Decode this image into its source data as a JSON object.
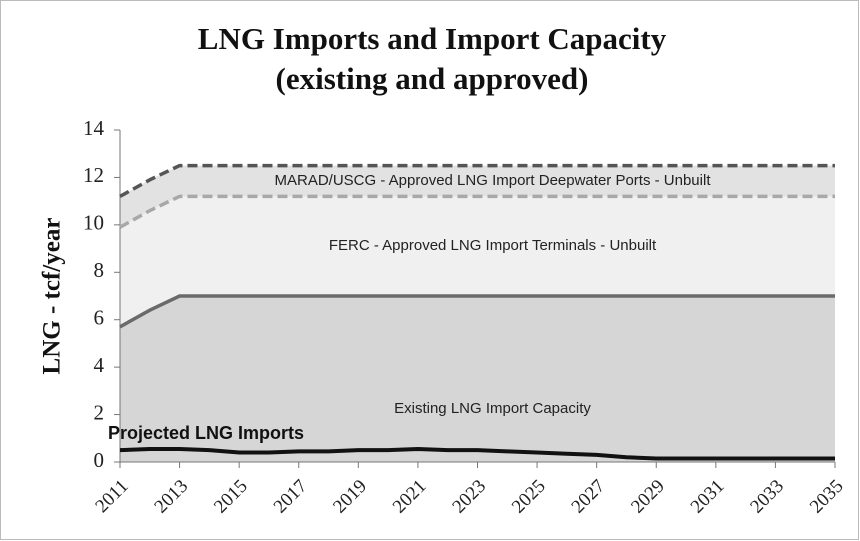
{
  "chart_data": {
    "type": "area",
    "stacked": true,
    "title": [
      "LNG Imports and Import Capacity",
      "(existing and approved)"
    ],
    "y_label": "LNG - tcf/year",
    "x": [
      2011,
      2012,
      2013,
      2014,
      2015,
      2016,
      2017,
      2018,
      2019,
      2020,
      2021,
      2022,
      2023,
      2024,
      2025,
      2026,
      2027,
      2028,
      2029,
      2030,
      2031,
      2032,
      2033,
      2034,
      2035
    ],
    "xlim": [
      2011,
      2035
    ],
    "xticks": [
      2011,
      2013,
      2015,
      2017,
      2019,
      2021,
      2023,
      2025,
      2027,
      2029,
      2031,
      2033,
      2035
    ],
    "ylim": [
      0,
      14
    ],
    "yticks": [
      0,
      2,
      4,
      6,
      8,
      10,
      12,
      14
    ],
    "series": [
      {
        "name": "Existing LNG Import Capacity",
        "color": "#d6d6d6",
        "line_color": "#6a6a6a",
        "dash": false,
        "values": [
          5.7,
          6.4,
          7.0,
          7.0,
          7.0,
          7.0,
          7.0,
          7.0,
          7.0,
          7.0,
          7.0,
          7.0,
          7.0,
          7.0,
          7.0,
          7.0,
          7.0,
          7.0,
          7.0,
          7.0,
          7.0,
          7.0,
          7.0,
          7.0,
          7.0
        ]
      },
      {
        "name": "FERC - Approved LNG Import Terminals - Unbuilt",
        "color": "#f0f0f0",
        "line_color": "#a8a8a8",
        "dash": true,
        "values": [
          4.2,
          4.2,
          4.2,
          4.2,
          4.2,
          4.2,
          4.2,
          4.2,
          4.2,
          4.2,
          4.2,
          4.2,
          4.2,
          4.2,
          4.2,
          4.2,
          4.2,
          4.2,
          4.2,
          4.2,
          4.2,
          4.2,
          4.2,
          4.2,
          4.2
        ]
      },
      {
        "name": "MARAD/USCG - Approved LNG Import Deepwater Ports - Unbuilt",
        "color": "#e2e2e2",
        "line_color": "#555555",
        "dash": true,
        "values": [
          1.3,
          1.3,
          1.3,
          1.3,
          1.3,
          1.3,
          1.3,
          1.3,
          1.3,
          1.3,
          1.3,
          1.3,
          1.3,
          1.3,
          1.3,
          1.3,
          1.3,
          1.3,
          1.3,
          1.3,
          1.3,
          1.3,
          1.3,
          1.3,
          1.3
        ]
      },
      {
        "name": "Projected LNG Imports",
        "color": "#111111",
        "kind": "line",
        "values": [
          0.5,
          0.55,
          0.55,
          0.5,
          0.4,
          0.4,
          0.45,
          0.45,
          0.5,
          0.5,
          0.55,
          0.5,
          0.5,
          0.45,
          0.4,
          0.35,
          0.3,
          0.2,
          0.15,
          0.15,
          0.15,
          0.15,
          0.15,
          0.15,
          0.15
        ]
      }
    ]
  }
}
